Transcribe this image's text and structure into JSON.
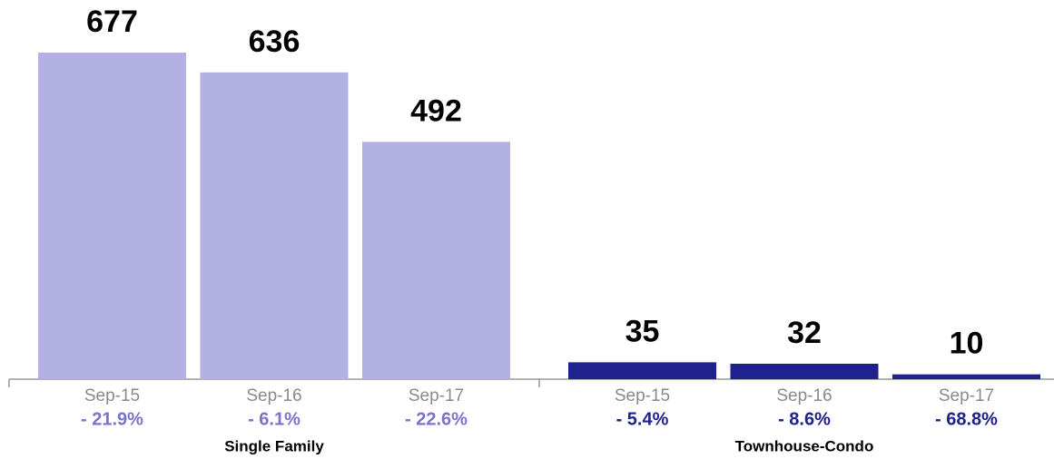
{
  "chart_data": {
    "type": "bar",
    "groups": [
      {
        "name": "Single Family",
        "color": "#b3b1e3",
        "label_color": "#7a73cc",
        "categories": [
          "Sep-15",
          "Sep-16",
          "Sep-17"
        ],
        "values": [
          677,
          636,
          492
        ],
        "changes": [
          "- 21.9%",
          "- 6.1%",
          "- 22.6%"
        ]
      },
      {
        "name": "Townhouse-Condo",
        "color": "#1f228c",
        "label_color": "#1f228c",
        "categories": [
          "Sep-15",
          "Sep-16",
          "Sep-17"
        ],
        "values": [
          35,
          32,
          10
        ],
        "changes": [
          "- 5.4%",
          "- 8.6%",
          "- 68.8%"
        ]
      }
    ]
  }
}
